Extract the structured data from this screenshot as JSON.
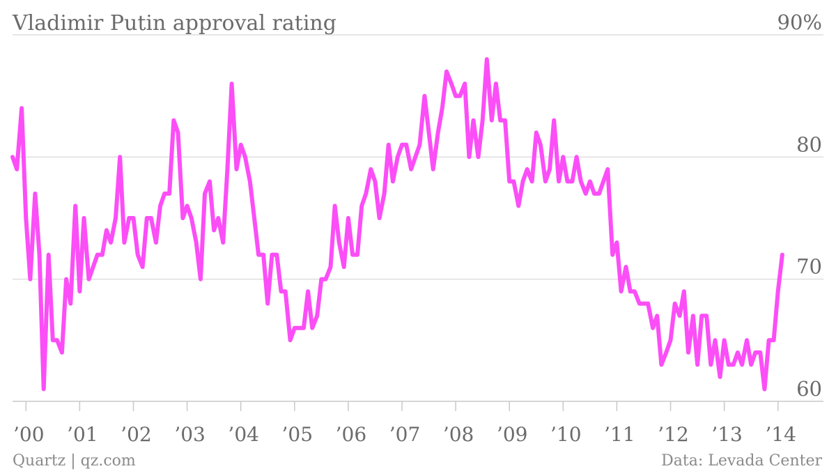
{
  "chart_data": {
    "type": "line",
    "title": "Vladimir Putin approval rating",
    "source": "Data: Levada Center",
    "credit": "Quartz | qz.com",
    "ylim": [
      60,
      90
    ],
    "y_ticks": [
      {
        "value": 90,
        "label": "90%"
      },
      {
        "value": 80,
        "label": "80"
      },
      {
        "value": 70,
        "label": "70"
      },
      {
        "value": 60,
        "label": "60"
      }
    ],
    "x_ticks": [
      "’00",
      "’01",
      "’02",
      "’03",
      "’04",
      "’05",
      "’06",
      "’07",
      "’08",
      "’09",
      "’10",
      "’11",
      "’12",
      "’13",
      "’14"
    ],
    "x_start_year": 1999.75,
    "x_end_year": 2014.25,
    "grid": true,
    "legend": "none",
    "series": [
      {
        "color": "#fb4ef7",
        "points": [
          [
            1999.75,
            80
          ],
          [
            1999.83,
            79
          ],
          [
            1999.92,
            84
          ],
          [
            2000.0,
            75
          ],
          [
            2000.08,
            70
          ],
          [
            2000.17,
            77
          ],
          [
            2000.25,
            72
          ],
          [
            2000.33,
            61
          ],
          [
            2000.42,
            72
          ],
          [
            2000.5,
            65
          ],
          [
            2000.58,
            65
          ],
          [
            2000.67,
            64
          ],
          [
            2000.75,
            70
          ],
          [
            2000.83,
            68
          ],
          [
            2000.92,
            76
          ],
          [
            2001.0,
            69
          ],
          [
            2001.08,
            75
          ],
          [
            2001.17,
            70
          ],
          [
            2001.25,
            71
          ],
          [
            2001.33,
            72
          ],
          [
            2001.42,
            72
          ],
          [
            2001.5,
            74
          ],
          [
            2001.58,
            73
          ],
          [
            2001.67,
            75
          ],
          [
            2001.75,
            80
          ],
          [
            2001.83,
            73
          ],
          [
            2001.92,
            75
          ],
          [
            2002.0,
            75
          ],
          [
            2002.08,
            72
          ],
          [
            2002.17,
            71
          ],
          [
            2002.25,
            75
          ],
          [
            2002.33,
            75
          ],
          [
            2002.42,
            73
          ],
          [
            2002.5,
            76
          ],
          [
            2002.58,
            77
          ],
          [
            2002.67,
            77
          ],
          [
            2002.75,
            83
          ],
          [
            2002.83,
            82
          ],
          [
            2002.92,
            75
          ],
          [
            2003.0,
            76
          ],
          [
            2003.08,
            75
          ],
          [
            2003.17,
            73
          ],
          [
            2003.25,
            70
          ],
          [
            2003.33,
            77
          ],
          [
            2003.42,
            78
          ],
          [
            2003.5,
            74
          ],
          [
            2003.58,
            75
          ],
          [
            2003.67,
            73
          ],
          [
            2003.75,
            79
          ],
          [
            2003.83,
            86
          ],
          [
            2003.92,
            79
          ],
          [
            2004.0,
            81
          ],
          [
            2004.08,
            80
          ],
          [
            2004.17,
            78
          ],
          [
            2004.25,
            75
          ],
          [
            2004.33,
            72
          ],
          [
            2004.42,
            72
          ],
          [
            2004.5,
            68
          ],
          [
            2004.58,
            72
          ],
          [
            2004.67,
            72
          ],
          [
            2004.75,
            69
          ],
          [
            2004.83,
            69
          ],
          [
            2004.92,
            65
          ],
          [
            2005.0,
            66
          ],
          [
            2005.08,
            66
          ],
          [
            2005.17,
            66
          ],
          [
            2005.25,
            69
          ],
          [
            2005.33,
            66
          ],
          [
            2005.42,
            67
          ],
          [
            2005.5,
            70
          ],
          [
            2005.58,
            70
          ],
          [
            2005.67,
            71
          ],
          [
            2005.75,
            76
          ],
          [
            2005.83,
            73
          ],
          [
            2005.92,
            71
          ],
          [
            2006.0,
            75
          ],
          [
            2006.08,
            72
          ],
          [
            2006.17,
            72
          ],
          [
            2006.25,
            76
          ],
          [
            2006.33,
            77
          ],
          [
            2006.42,
            79
          ],
          [
            2006.5,
            78
          ],
          [
            2006.58,
            75
          ],
          [
            2006.67,
            77
          ],
          [
            2006.75,
            81
          ],
          [
            2006.83,
            78
          ],
          [
            2006.92,
            80
          ],
          [
            2007.0,
            81
          ],
          [
            2007.08,
            81
          ],
          [
            2007.17,
            79
          ],
          [
            2007.25,
            80
          ],
          [
            2007.33,
            81
          ],
          [
            2007.42,
            85
          ],
          [
            2007.5,
            82
          ],
          [
            2007.58,
            79
          ],
          [
            2007.67,
            82
          ],
          [
            2007.75,
            84
          ],
          [
            2007.83,
            87
          ],
          [
            2007.92,
            86
          ],
          [
            2008.0,
            85
          ],
          [
            2008.08,
            85
          ],
          [
            2008.17,
            86
          ],
          [
            2008.25,
            80
          ],
          [
            2008.33,
            83
          ],
          [
            2008.42,
            80
          ],
          [
            2008.5,
            83
          ],
          [
            2008.58,
            88
          ],
          [
            2008.67,
            83
          ],
          [
            2008.75,
            86
          ],
          [
            2008.83,
            83
          ],
          [
            2008.92,
            83
          ],
          [
            2009.0,
            78
          ],
          [
            2009.08,
            78
          ],
          [
            2009.17,
            76
          ],
          [
            2009.25,
            78
          ],
          [
            2009.33,
            79
          ],
          [
            2009.42,
            78
          ],
          [
            2009.5,
            82
          ],
          [
            2009.58,
            81
          ],
          [
            2009.67,
            78
          ],
          [
            2009.75,
            79
          ],
          [
            2009.83,
            83
          ],
          [
            2009.92,
            78
          ],
          [
            2010.0,
            80
          ],
          [
            2010.08,
            78
          ],
          [
            2010.17,
            78
          ],
          [
            2010.25,
            80
          ],
          [
            2010.33,
            78
          ],
          [
            2010.42,
            77
          ],
          [
            2010.5,
            78
          ],
          [
            2010.58,
            77
          ],
          [
            2010.67,
            77
          ],
          [
            2010.75,
            78
          ],
          [
            2010.83,
            79
          ],
          [
            2010.92,
            72
          ],
          [
            2011.0,
            73
          ],
          [
            2011.08,
            69
          ],
          [
            2011.17,
            71
          ],
          [
            2011.25,
            69
          ],
          [
            2011.33,
            69
          ],
          [
            2011.42,
            68
          ],
          [
            2011.5,
            68
          ],
          [
            2011.58,
            68
          ],
          [
            2011.67,
            66
          ],
          [
            2011.75,
            67
          ],
          [
            2011.83,
            63
          ],
          [
            2011.92,
            64
          ],
          [
            2012.0,
            65
          ],
          [
            2012.08,
            68
          ],
          [
            2012.17,
            67
          ],
          [
            2012.25,
            69
          ],
          [
            2012.33,
            64
          ],
          [
            2012.42,
            67
          ],
          [
            2012.5,
            63
          ],
          [
            2012.58,
            67
          ],
          [
            2012.67,
            67
          ],
          [
            2012.75,
            63
          ],
          [
            2012.83,
            65
          ],
          [
            2012.92,
            62
          ],
          [
            2013.0,
            65
          ],
          [
            2013.08,
            63
          ],
          [
            2013.17,
            63
          ],
          [
            2013.25,
            64
          ],
          [
            2013.33,
            63
          ],
          [
            2013.42,
            65
          ],
          [
            2013.5,
            63
          ],
          [
            2013.58,
            64
          ],
          [
            2013.67,
            64
          ],
          [
            2013.75,
            61
          ],
          [
            2013.83,
            65
          ],
          [
            2013.92,
            65
          ],
          [
            2014.0,
            69
          ],
          [
            2014.08,
            72
          ]
        ]
      }
    ]
  }
}
